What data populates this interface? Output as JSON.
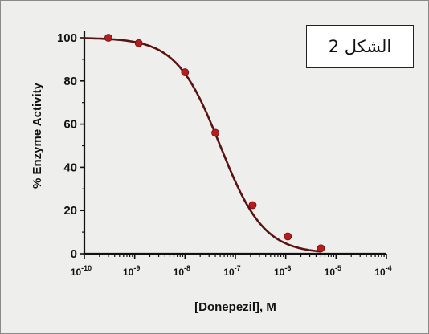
{
  "annotation": "الشكل 2",
  "chart_data": {
    "type": "scatter",
    "title": "",
    "xlabel": "[Donepezil], M",
    "ylabel": "% Enzyme Activity",
    "xscale": "log",
    "xlim": [
      1e-10,
      0.0001
    ],
    "ylim": [
      0,
      100
    ],
    "x_ticks": [
      {
        "value": 1e-10,
        "base": "10",
        "exp": "-10"
      },
      {
        "value": 1e-09,
        "base": "10",
        "exp": "-9"
      },
      {
        "value": 1e-08,
        "base": "10",
        "exp": "-8"
      },
      {
        "value": 1e-07,
        "base": "10",
        "exp": "-7"
      },
      {
        "value": 1e-06,
        "base": "10",
        "exp": "-6"
      },
      {
        "value": 1e-05,
        "base": "10",
        "exp": "-5"
      },
      {
        "value": 0.0001,
        "base": "10",
        "exp": "-4"
      }
    ],
    "y_ticks": [
      0,
      20,
      40,
      60,
      80,
      100
    ],
    "grid": false,
    "legend": "none",
    "series": [
      {
        "x": [
          3e-10,
          1.2e-09,
          1e-08,
          4e-08,
          2.2e-07,
          1.1e-06,
          5e-06
        ],
        "y": [
          100,
          97.5,
          84,
          56,
          22.5,
          8,
          2.5
        ]
      }
    ],
    "fit_curve": {
      "model": "four-parameter logistic",
      "top": 100,
      "bottom": 0,
      "ic50": 5e-08,
      "hill_slope": 1
    },
    "colors": {
      "points": "#b41e1e",
      "curve": "#5a1212",
      "axes": "#111111",
      "background": "#eeeeec"
    }
  }
}
